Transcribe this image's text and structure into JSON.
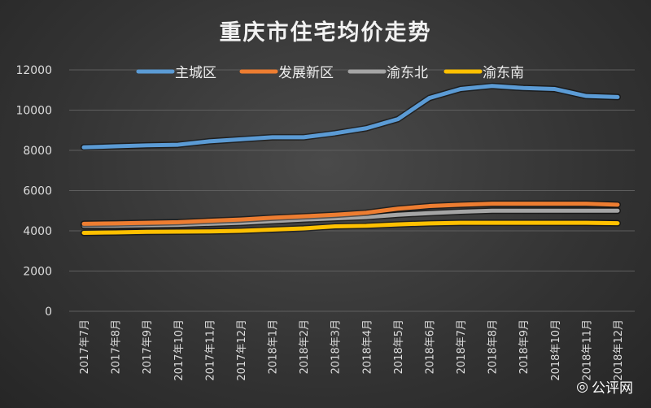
{
  "chart_data": {
    "type": "line",
    "title": "重庆市住宅均价走势",
    "categories": [
      "2017年7月",
      "2017年8月",
      "2017年9月",
      "2017年10月",
      "2017年11月",
      "2017年12月",
      "2018年1月",
      "2018年2月",
      "2018年3月",
      "2018年4月",
      "2018年5月",
      "2018年6月",
      "2018年7月",
      "2018年8月",
      "2018年9月",
      "2018年10月",
      "2018年11月",
      "2018年12月"
    ],
    "ylim": [
      0,
      12000
    ],
    "yticks": [
      0,
      2000,
      4000,
      6000,
      8000,
      10000,
      12000
    ],
    "grid": true,
    "legend": "top",
    "series": [
      {
        "name": "主城区",
        "color": "#5b9bd5",
        "values": [
          8150,
          8200,
          8250,
          8280,
          8450,
          8550,
          8650,
          8650,
          8850,
          9100,
          9550,
          10600,
          11050,
          11200,
          11100,
          11050,
          10700,
          10650
        ]
      },
      {
        "name": "发展新区",
        "color": "#ed7d31",
        "values": [
          4350,
          4370,
          4400,
          4430,
          4500,
          4560,
          4650,
          4720,
          4800,
          4900,
          5100,
          5230,
          5300,
          5350,
          5350,
          5350,
          5350,
          5300
        ]
      },
      {
        "name": "渝东北",
        "color": "#a5a5a5",
        "values": [
          4250,
          4260,
          4280,
          4300,
          4350,
          4400,
          4480,
          4560,
          4620,
          4680,
          4800,
          4880,
          4950,
          5000,
          5000,
          5000,
          5000,
          5000
        ]
      },
      {
        "name": "渝东南",
        "color": "#ffc000",
        "values": [
          3900,
          3920,
          3950,
          3960,
          3970,
          4000,
          4060,
          4120,
          4220,
          4250,
          4320,
          4370,
          4400,
          4400,
          4400,
          4400,
          4400,
          4380
        ]
      }
    ]
  },
  "watermark": "公评网"
}
